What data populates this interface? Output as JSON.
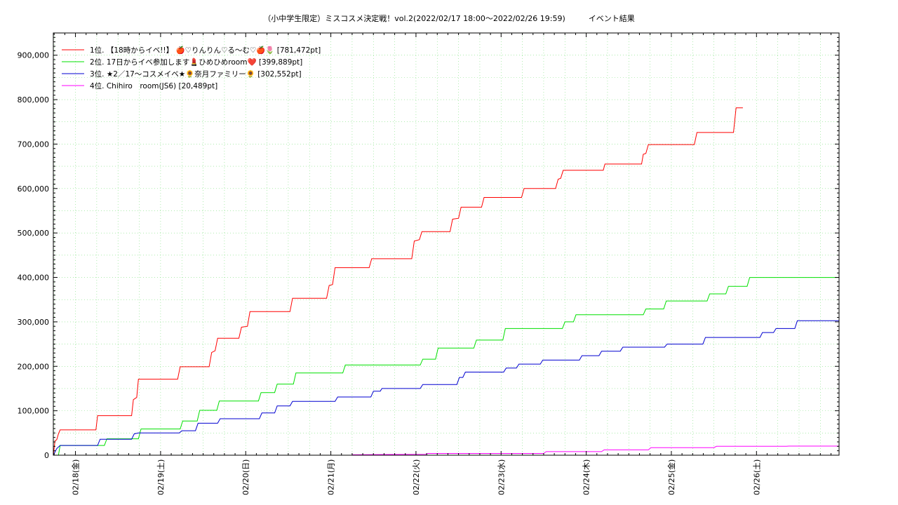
{
  "chart_data": {
    "type": "line",
    "title": "（小中学生限定）ミスコスメ決定戦！vol.2(2022/02/17 18:00～2022/02/26 19:59)　　　イベント結果",
    "x_unit": "day offset from 2022/02/18 00:00",
    "xlim": [
      -0.26,
      8.97
    ],
    "ylim": [
      0,
      950000
    ],
    "y_ticks": [
      0,
      100000,
      200000,
      300000,
      400000,
      500000,
      600000,
      700000,
      800000,
      900000
    ],
    "y_tick_labels": [
      "0",
      "100,000",
      "200,000",
      "300,000",
      "400,000",
      "500,000",
      "600,000",
      "700,000",
      "800,000",
      "900,000"
    ],
    "x_ticks": [
      0,
      1,
      2,
      3,
      4,
      5,
      6,
      7,
      8
    ],
    "x_tick_labels": [
      "02/18(金)",
      "02/19(土)",
      "02/20(日)",
      "02/21(月)",
      "02/22(火)",
      "02/23(水)",
      "02/24(木)",
      "02/25(金)",
      "02/26(土)"
    ],
    "grid": true,
    "legend_position": "top-left",
    "series": [
      {
        "name": "1位. 【18時からイベ!!】 🍎♡りんりん♡る〜む♡🍎🌷 [781,472pt]",
        "color": "#ff0000",
        "points": [
          [
            -0.26,
            0
          ],
          [
            -0.24,
            32000
          ],
          [
            -0.22,
            35000
          ],
          [
            -0.2,
            48000
          ],
          [
            -0.18,
            57000
          ],
          [
            0.24,
            57000
          ],
          [
            0.26,
            89000
          ],
          [
            0.66,
            89000
          ],
          [
            0.68,
            125000
          ],
          [
            0.72,
            130000
          ],
          [
            0.74,
            171000
          ],
          [
            1.2,
            171000
          ],
          [
            1.23,
            199000
          ],
          [
            1.57,
            199000
          ],
          [
            1.6,
            231000
          ],
          [
            1.64,
            235000
          ],
          [
            1.67,
            263000
          ],
          [
            1.92,
            263000
          ],
          [
            1.95,
            288000
          ],
          [
            2.02,
            290000
          ],
          [
            2.05,
            323000
          ],
          [
            2.52,
            323000
          ],
          [
            2.55,
            353000
          ],
          [
            2.95,
            353000
          ],
          [
            2.98,
            382000
          ],
          [
            3.02,
            384000
          ],
          [
            3.05,
            422000
          ],
          [
            3.45,
            422000
          ],
          [
            3.48,
            442000
          ],
          [
            3.95,
            442000
          ],
          [
            3.98,
            482000
          ],
          [
            4.04,
            485000
          ],
          [
            4.07,
            503000
          ],
          [
            4.4,
            503000
          ],
          [
            4.43,
            531000
          ],
          [
            4.5,
            533000
          ],
          [
            4.53,
            558000
          ],
          [
            4.77,
            558000
          ],
          [
            4.8,
            580000
          ],
          [
            5.24,
            580000
          ],
          [
            5.27,
            600000
          ],
          [
            5.64,
            600000
          ],
          [
            5.67,
            621000
          ],
          [
            5.7,
            623000
          ],
          [
            5.73,
            641000
          ],
          [
            6.2,
            641000
          ],
          [
            6.22,
            655000
          ],
          [
            6.65,
            655000
          ],
          [
            6.67,
            677000
          ],
          [
            6.7,
            679000
          ],
          [
            6.73,
            699000
          ],
          [
            7.27,
            699000
          ],
          [
            7.3,
            726000
          ],
          [
            7.73,
            726000
          ],
          [
            7.76,
            781472
          ],
          [
            7.84,
            781472
          ]
        ]
      },
      {
        "name": "2位. 17日からイベ参加します💄ひめひめroom❤️ [399,889pt]",
        "color": "#00e000",
        "points": [
          [
            -0.2,
            0
          ],
          [
            -0.18,
            22000
          ],
          [
            0.34,
            22000
          ],
          [
            0.37,
            37000
          ],
          [
            0.74,
            37000
          ],
          [
            0.77,
            59000
          ],
          [
            1.23,
            59000
          ],
          [
            1.26,
            77000
          ],
          [
            1.43,
            77000
          ],
          [
            1.46,
            101000
          ],
          [
            1.66,
            101000
          ],
          [
            1.69,
            122000
          ],
          [
            2.15,
            122000
          ],
          [
            2.18,
            141000
          ],
          [
            2.34,
            141000
          ],
          [
            2.37,
            160000
          ],
          [
            2.56,
            160000
          ],
          [
            2.59,
            185000
          ],
          [
            3.14,
            185000
          ],
          [
            3.17,
            203000
          ],
          [
            4.05,
            203000
          ],
          [
            4.08,
            216000
          ],
          [
            4.23,
            216000
          ],
          [
            4.26,
            241000
          ],
          [
            4.68,
            241000
          ],
          [
            4.71,
            259000
          ],
          [
            5.02,
            259000
          ],
          [
            5.05,
            285000
          ],
          [
            5.72,
            285000
          ],
          [
            5.75,
            300000
          ],
          [
            5.85,
            300000
          ],
          [
            5.88,
            316000
          ],
          [
            6.67,
            316000
          ],
          [
            6.7,
            329000
          ],
          [
            6.91,
            329000
          ],
          [
            6.94,
            347000
          ],
          [
            7.42,
            347000
          ],
          [
            7.45,
            363000
          ],
          [
            7.64,
            363000
          ],
          [
            7.67,
            380000
          ],
          [
            7.89,
            380000
          ],
          [
            7.92,
            399889
          ],
          [
            8.97,
            399889
          ]
        ]
      },
      {
        "name": "3位. ★2／17〜コスメイベ★🌻奈月ファミリー🌻 [302,552pt]",
        "color": "#0000d0",
        "points": [
          [
            -0.26,
            0
          ],
          [
            -0.22,
            15000
          ],
          [
            -0.18,
            22000
          ],
          [
            0.26,
            22000
          ],
          [
            0.29,
            36000
          ],
          [
            0.66,
            36000
          ],
          [
            0.69,
            48000
          ],
          [
            0.74,
            50000
          ],
          [
            1.22,
            50000
          ],
          [
            1.25,
            55000
          ],
          [
            1.41,
            55000
          ],
          [
            1.44,
            72000
          ],
          [
            1.67,
            72000
          ],
          [
            1.7,
            82000
          ],
          [
            2.16,
            82000
          ],
          [
            2.19,
            95000
          ],
          [
            2.34,
            95000
          ],
          [
            2.37,
            111000
          ],
          [
            2.52,
            111000
          ],
          [
            2.55,
            121000
          ],
          [
            3.05,
            121000
          ],
          [
            3.08,
            131000
          ],
          [
            3.47,
            131000
          ],
          [
            3.5,
            144000
          ],
          [
            3.58,
            144000
          ],
          [
            3.6,
            150000
          ],
          [
            4.05,
            150000
          ],
          [
            4.08,
            159000
          ],
          [
            4.48,
            159000
          ],
          [
            4.51,
            175000
          ],
          [
            4.55,
            175000
          ],
          [
            4.58,
            187000
          ],
          [
            5.03,
            187000
          ],
          [
            5.06,
            196000
          ],
          [
            5.18,
            196000
          ],
          [
            5.21,
            205000
          ],
          [
            5.46,
            205000
          ],
          [
            5.49,
            214000
          ],
          [
            5.92,
            214000
          ],
          [
            5.95,
            224000
          ],
          [
            6.15,
            224000
          ],
          [
            6.18,
            234000
          ],
          [
            6.4,
            234000
          ],
          [
            6.43,
            243000
          ],
          [
            6.92,
            243000
          ],
          [
            6.95,
            250000
          ],
          [
            7.37,
            250000
          ],
          [
            7.4,
            265000
          ],
          [
            8.04,
            265000
          ],
          [
            8.07,
            276000
          ],
          [
            8.2,
            276000
          ],
          [
            8.23,
            285000
          ],
          [
            8.45,
            285000
          ],
          [
            8.48,
            302552
          ],
          [
            8.97,
            302552
          ]
        ]
      },
      {
        "name": "4位. Chihiro　room(JS6) [20,489pt]",
        "color": "#ff00ff",
        "points": [
          [
            3.25,
            1000
          ],
          [
            3.7,
            1500
          ],
          [
            4.12,
            2000
          ],
          [
            4.14,
            4000
          ],
          [
            5.5,
            4000
          ],
          [
            5.53,
            8000
          ],
          [
            6.18,
            8000
          ],
          [
            6.21,
            12000
          ],
          [
            6.73,
            12000
          ],
          [
            6.76,
            17000
          ],
          [
            7.5,
            17000
          ],
          [
            7.53,
            20000
          ],
          [
            8.35,
            20000
          ],
          [
            8.38,
            20489
          ],
          [
            8.97,
            20489
          ]
        ]
      }
    ]
  }
}
